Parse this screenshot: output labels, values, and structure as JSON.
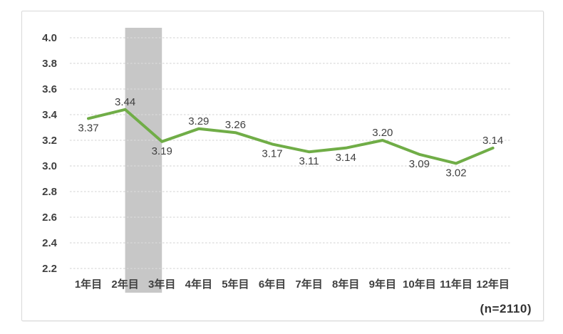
{
  "colors": {
    "line": "#70AD47",
    "band": "#C7C7C7",
    "grid": "#D9D9D9",
    "frame_border": "#D9D9D9",
    "text": "#3F3F3F"
  },
  "chart_data": {
    "type": "line",
    "categories": [
      "1年目",
      "2年目",
      "3年目",
      "4年目",
      "5年目",
      "6年目",
      "7年目",
      "8年目",
      "9年目",
      "10年目",
      "11年目",
      "12年目"
    ],
    "series": [
      {
        "name": "",
        "values": [
          3.37,
          3.44,
          3.19,
          3.29,
          3.26,
          3.17,
          3.11,
          3.14,
          3.2,
          3.09,
          3.02,
          3.14
        ],
        "labels": [
          "3.37",
          "3.44",
          "3.19",
          "3.29",
          "3.26",
          "3.17",
          "3.11",
          "3.14",
          "3.20",
          "3.09",
          "3.02",
          "3.14"
        ],
        "label_positions": [
          "below",
          "above",
          "below",
          "above",
          "above",
          "below",
          "below",
          "below",
          "above",
          "below",
          "below",
          "above"
        ],
        "color": "#70AD47"
      }
    ],
    "title": "",
    "xlabel": "",
    "ylabel": "",
    "ylim": [
      2.2,
      4.0
    ],
    "yticks": [
      "4.0",
      "3.8",
      "3.6",
      "3.4",
      "3.2",
      "3.0",
      "2.8",
      "2.6",
      "2.4",
      "2.2"
    ],
    "grid": "horizontal-dashed",
    "legend_position": "none",
    "highlight_band": {
      "from_category": "2年目",
      "to_category": "3年目",
      "from_index": 1,
      "to_index": 2,
      "color": "#C7C7C7"
    },
    "annotation": "(n=2110)"
  }
}
